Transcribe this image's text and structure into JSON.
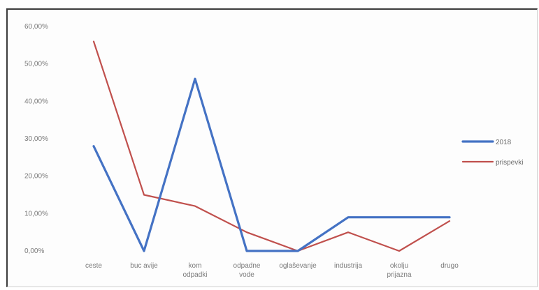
{
  "chart_data": {
    "type": "line",
    "categories": [
      [
        "ceste"
      ],
      [
        "buc avije"
      ],
      [
        "kom",
        "odpadki"
      ],
      [
        "odpadne",
        "vode"
      ],
      [
        "oglaševanje"
      ],
      [
        "industrija"
      ],
      [
        "okolju",
        "prijazna"
      ],
      [
        "drugo"
      ]
    ],
    "series": [
      {
        "name": "2018",
        "color": "#4472c4",
        "values": [
          28,
          0,
          46,
          0,
          0,
          9,
          9,
          9
        ]
      },
      {
        "name": "prispevki",
        "color": "#c0504d",
        "values": [
          56,
          15,
          12,
          5,
          0,
          5,
          0,
          8
        ]
      }
    ],
    "yticks": [
      "0,00%",
      "10,00%",
      "20,00%",
      "30,00%",
      "40,00%",
      "50,00%",
      "60,00%"
    ],
    "ylim": [
      0,
      60
    ],
    "grid": false,
    "legend_position": "right"
  }
}
